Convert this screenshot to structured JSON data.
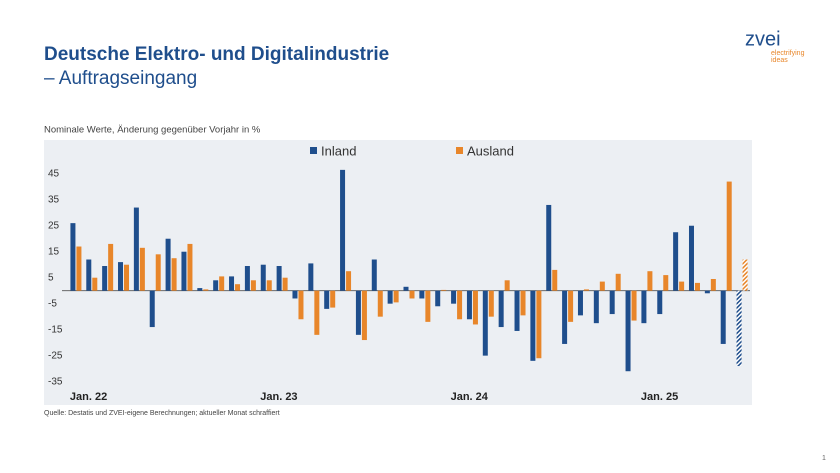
{
  "header": {
    "title": "Deutsche Elektro- und Digitalindustrie",
    "subtitle": "– Auftragseingang"
  },
  "logo": {
    "name": "zvei",
    "tagline": [
      "electrifying",
      "ideas"
    ]
  },
  "chart_data": {
    "type": "bar",
    "subtitle": "Nominale Werte, Änderung gegenüber Vorjahr in %",
    "categories": [
      "Jan. 22",
      null,
      null,
      null,
      null,
      null,
      null,
      null,
      null,
      null,
      null,
      null,
      "Jan. 23",
      null,
      null,
      null,
      null,
      null,
      null,
      null,
      null,
      null,
      null,
      null,
      "Jan. 24",
      null,
      null,
      null,
      null,
      null,
      null,
      null,
      null,
      null,
      null,
      null,
      "Jan. 25",
      null,
      null,
      null,
      null,
      null,
      null
    ],
    "series": [
      {
        "name": "Inland",
        "color": "#1f4e8c",
        "values": [
          26,
          12,
          9.5,
          11,
          32,
          -14,
          20,
          15,
          1,
          4,
          5.5,
          9.5,
          10,
          9.5,
          -3,
          10.5,
          -7,
          46.5,
          -17,
          12,
          -5,
          1.5,
          -3,
          -6,
          -5,
          -11,
          -25,
          -14,
          -15.5,
          -27,
          33,
          -20.5,
          -9.5,
          -12.5,
          -9,
          -31,
          -12.5,
          -9,
          22.5,
          25,
          -1,
          -20.5,
          -29
        ]
      },
      {
        "name": "Ausland",
        "color": "#e8862a",
        "values": [
          17,
          5,
          18,
          10,
          16.5,
          14,
          12.5,
          18,
          0.5,
          5.5,
          2.5,
          4,
          4,
          5,
          -11,
          -17,
          -6.5,
          7.5,
          -19,
          -10,
          -4.5,
          -3,
          -12,
          0.3,
          -11,
          -13,
          -10,
          4,
          -9.5,
          -26,
          8,
          -12,
          0.5,
          3.5,
          6.5,
          -11.5,
          7.5,
          6,
          3.5,
          3,
          4.5,
          42,
          12
        ]
      }
    ],
    "hatched_index": 42,
    "ylim": [
      -44,
      58
    ],
    "yticks": [
      45,
      35,
      25,
      15,
      5,
      -5,
      -15,
      -25,
      -35
    ],
    "grid": false
  },
  "source": "Quelle: Destatis und ZVEI-eigene Berechnungen; aktueller Monat schraffiert",
  "page_number": "1"
}
